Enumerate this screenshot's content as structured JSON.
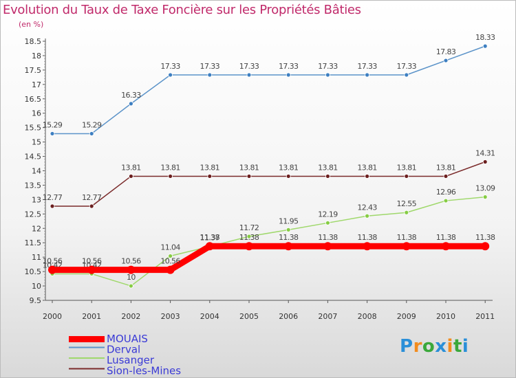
{
  "chart_data": {
    "type": "line",
    "title": "Evolution du Taux de Taxe Foncière sur les Propriétés Bâties",
    "ylabel": "(en %)",
    "x": [
      "2000",
      "2001",
      "2002",
      "2003",
      "2004",
      "2005",
      "2006",
      "2007",
      "2008",
      "2009",
      "2010",
      "2011"
    ],
    "ylim": [
      9.5,
      18.5
    ],
    "yticks": [
      "9.5",
      "10",
      "10.5",
      "11",
      "11.5",
      "12",
      "12.5",
      "13",
      "13.5",
      "14",
      "14.5",
      "15",
      "15.5",
      "16",
      "16.5",
      "17",
      "17.5",
      "18",
      "18.5"
    ],
    "series": [
      {
        "name": "Derval",
        "color": "#5b93c9",
        "marker": "#3d7fc1",
        "values": [
          15.29,
          15.29,
          16.33,
          17.33,
          17.33,
          17.33,
          17.33,
          17.33,
          17.33,
          17.33,
          17.83,
          18.33
        ],
        "labels": [
          "15.29",
          "15.29",
          "16.33",
          "17.33",
          "17.33",
          "17.33",
          "17.33",
          "17.33",
          "17.33",
          "17.33",
          "17.83",
          "18.33"
        ]
      },
      {
        "name": "Sion-les-Mines",
        "color": "#7a2a2a",
        "marker": "#6b1f1f",
        "values": [
          12.77,
          12.77,
          13.81,
          13.81,
          13.81,
          13.81,
          13.81,
          13.81,
          13.81,
          13.81,
          13.81,
          14.31
        ],
        "labels": [
          "12.77",
          "12.77",
          "13.81",
          "13.81",
          "13.81",
          "13.81",
          "13.81",
          "13.81",
          "13.81",
          "13.81",
          "13.81",
          "14.31"
        ]
      },
      {
        "name": "Lusanger",
        "color": "#9fd86b",
        "marker": "#86cc44",
        "values": [
          10.42,
          10.42,
          10,
          11.04,
          11.37,
          11.72,
          11.95,
          12.19,
          12.43,
          12.55,
          12.96,
          13.09
        ],
        "labels": [
          "10.42",
          "10.42",
          "10",
          "11.04",
          "11.37",
          "11.72",
          "11.95",
          "12.19",
          "12.43",
          "12.55",
          "12.96",
          "13.09"
        ]
      },
      {
        "name": "MOUAIS",
        "color": "#ff0000",
        "marker": "#ff0000",
        "values": [
          10.56,
          10.56,
          10.56,
          10.56,
          11.38,
          11.38,
          11.38,
          11.38,
          11.38,
          11.38,
          11.38,
          11.38
        ],
        "labels": [
          "10.56",
          "10.56",
          "10.56",
          "10.56",
          "11.38",
          "11.38",
          "11.38",
          "11.38",
          "11.38",
          "11.38",
          "11.38",
          "11.38"
        ]
      }
    ],
    "legend": [
      {
        "name": "MOUAIS",
        "color": "#ff0000"
      },
      {
        "name": "Derval",
        "color": "#5b93c9"
      },
      {
        "name": "Lusanger",
        "color": "#9fd86b"
      },
      {
        "name": "Sion-les-Mines",
        "color": "#7a2a2a"
      }
    ],
    "legend_text_color": "#3a3ad6",
    "legend_position": "bottom-left"
  },
  "logo": {
    "text": "Proxiti",
    "letters": [
      "P",
      "r",
      "o",
      "x",
      "i",
      "t",
      "i"
    ],
    "colors": [
      "#2a8fd8",
      "#f28c1e",
      "#3aa83a",
      "#2a8fd8",
      "#f28c1e",
      "#3aa83a",
      "#2a8fd8"
    ]
  }
}
